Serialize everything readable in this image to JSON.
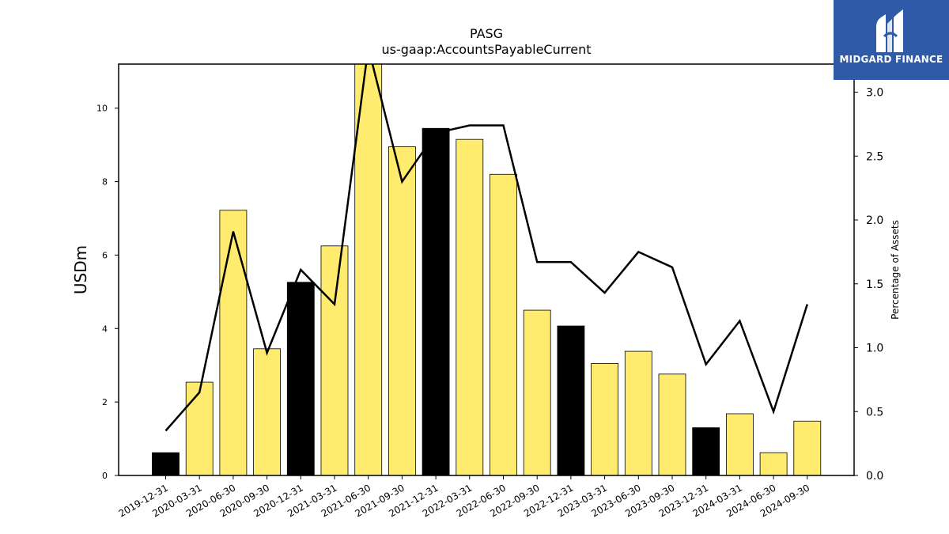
{
  "chart_data": {
    "type": "bar",
    "title": "PASG",
    "subtitle": "us-gaap:AccountsPayableCurrent",
    "ylabel": "USDm",
    "y2label": "Percentage of Assets",
    "ylim": [
      0,
      11.2
    ],
    "y2lim": [
      0,
      3.22
    ],
    "yticks": [
      0,
      2,
      4,
      6,
      8,
      10
    ],
    "y2ticks": [
      "0.0",
      "0.5",
      "1.0",
      "1.5",
      "2.0",
      "2.5",
      "3.0"
    ],
    "grid": false,
    "legend": "none",
    "categories": [
      "2019-12-31",
      "2020-03-31",
      "2020-06-30",
      "2020-09-30",
      "2020-12-31",
      "2021-03-31",
      "2021-06-30",
      "2021-09-30",
      "2021-12-31",
      "2022-03-31",
      "2022-06-30",
      "2022-09-30",
      "2022-12-31",
      "2023-03-31",
      "2023-06-30",
      "2023-09-30",
      "2023-12-31",
      "2024-03-31",
      "2024-06-30",
      "2024-09-30"
    ],
    "series": [
      {
        "type": "bar",
        "axis": "left",
        "values": [
          0.62,
          2.54,
          7.22,
          3.45,
          5.26,
          6.25,
          11.3,
          8.95,
          9.45,
          9.15,
          8.2,
          4.5,
          4.07,
          3.05,
          3.38,
          2.76,
          1.3,
          1.68,
          0.62,
          1.48
        ]
      },
      {
        "type": "line",
        "axis": "right",
        "values": [
          0.35,
          0.65,
          1.91,
          0.96,
          1.61,
          1.34,
          3.35,
          2.3,
          2.68,
          2.74,
          2.74,
          1.67,
          1.67,
          1.43,
          1.75,
          1.63,
          0.87,
          1.21,
          0.5,
          1.34
        ]
      }
    ],
    "bar_colors": {
      "quarter": "#ffec6e",
      "year_end": "#000000"
    },
    "year_end_flags": [
      true,
      false,
      false,
      false,
      true,
      false,
      false,
      false,
      true,
      false,
      false,
      false,
      true,
      false,
      false,
      false,
      true,
      false,
      false,
      false
    ]
  },
  "logo": {
    "text": "MIDGARD FINANCE",
    "icon": "midgard-logo-icon",
    "color": "#2e5aa8"
  }
}
